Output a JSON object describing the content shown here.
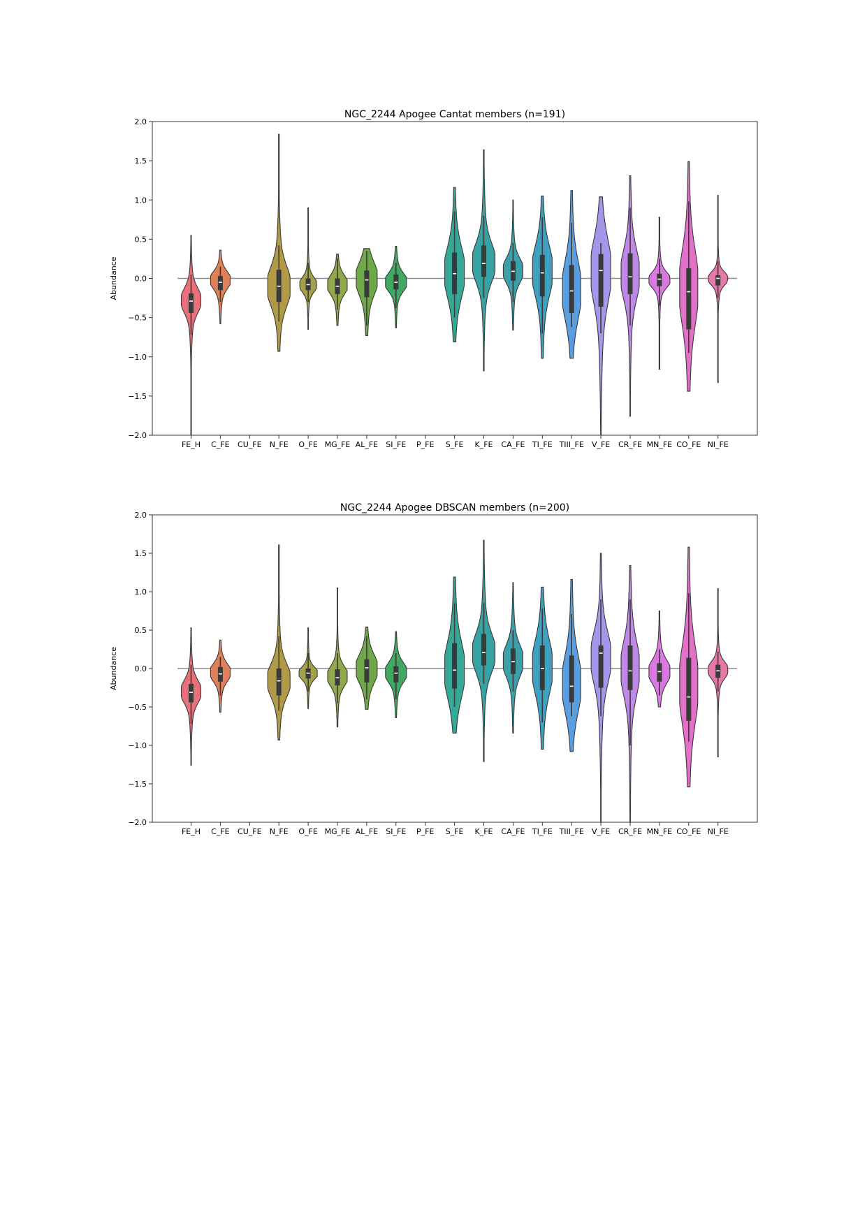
{
  "chart_data": [
    {
      "type": "violin",
      "title": "NGC_2244 Apogee Cantat members (n=191)",
      "xlabel": "",
      "ylabel": "Abundance",
      "ylim": [
        -2.0,
        2.0
      ],
      "yticks": [
        "2.0",
        "1.5",
        "1.0",
        "0.5",
        "0.0",
        "−0.5",
        "−1.0",
        "−1.5",
        "−2.0"
      ],
      "ytick_values": [
        2.0,
        1.5,
        1.0,
        0.5,
        0.0,
        -0.5,
        -1.0,
        -1.5,
        -2.0
      ],
      "reference_line": 0.0,
      "grid": false,
      "categories": [
        "FE_H",
        "C_FE",
        "CU_FE",
        "N_FE",
        "O_FE",
        "MG_FE",
        "AL_FE",
        "SI_FE",
        "P_FE",
        "S_FE",
        "K_FE",
        "CA_FE",
        "TI_FE",
        "TIII_FE",
        "V_FE",
        "CR_FE",
        "MN_FE",
        "CO_FE",
        "NI_FE"
      ],
      "violins": [
        {
          "name": "FE_H",
          "color": "#e8707a",
          "median": -0.29,
          "q1": -0.44,
          "q3": -0.19,
          "wmin": -0.72,
          "wmax": 0.05,
          "min": -2.0,
          "max": 0.55,
          "mode": -0.28,
          "width": 0.7
        },
        {
          "name": "C_FE",
          "color": "#e0805a",
          "median": -0.05,
          "q1": -0.15,
          "q3": 0.03,
          "wmin": -0.3,
          "wmax": 0.15,
          "min": -0.58,
          "max": 0.36,
          "mode": -0.02,
          "width": 0.7
        },
        {
          "name": "CU_FE",
          "color": "#c0a060",
          "median": null
        },
        {
          "name": "N_FE",
          "color": "#b09a48",
          "median": -0.1,
          "q1": -0.3,
          "q3": 0.11,
          "wmin": -0.55,
          "wmax": 0.42,
          "min": -0.93,
          "max": 1.84,
          "mode": -0.1,
          "width": 0.8
        },
        {
          "name": "O_FE",
          "color": "#a2a048",
          "median": -0.08,
          "q1": -0.15,
          "q3": 0.0,
          "wmin": -0.3,
          "wmax": 0.2,
          "min": -0.65,
          "max": 0.9,
          "mode": -0.08,
          "width": 0.6
        },
        {
          "name": "MG_FE",
          "color": "#90a848",
          "median": -0.1,
          "q1": -0.2,
          "q3": 0.0,
          "wmin": -0.4,
          "wmax": 0.25,
          "min": -0.6,
          "max": 0.31,
          "mode": -0.08,
          "width": 0.7
        },
        {
          "name": "AL_FE",
          "color": "#6fa848",
          "median": -0.02,
          "q1": -0.24,
          "q3": 0.1,
          "wmin": -0.6,
          "wmax": 0.35,
          "min": -0.73,
          "max": 0.38,
          "mode": 0.0,
          "width": 0.75
        },
        {
          "name": "SI_FE",
          "color": "#40a860",
          "median": -0.05,
          "q1": -0.14,
          "q3": 0.05,
          "wmin": -0.38,
          "wmax": 0.2,
          "min": -0.63,
          "max": 0.41,
          "mode": -0.05,
          "width": 0.75
        },
        {
          "name": "P_FE",
          "color": "#3ca890",
          "median": null
        },
        {
          "name": "S_FE",
          "color": "#36a898",
          "median": 0.06,
          "q1": -0.2,
          "q3": 0.33,
          "wmin": -0.5,
          "wmax": 0.85,
          "min": -0.81,
          "max": 1.16,
          "mode": 0.08,
          "width": 0.7
        },
        {
          "name": "K_FE",
          "color": "#38a2a2",
          "median": 0.19,
          "q1": 0.02,
          "q3": 0.42,
          "wmin": -0.25,
          "wmax": 0.8,
          "min": -1.18,
          "max": 1.64,
          "mode": 0.2,
          "width": 0.8
        },
        {
          "name": "CA_FE",
          "color": "#3aa0aa",
          "median": 0.09,
          "q1": -0.03,
          "q3": 0.22,
          "wmin": -0.3,
          "wmax": 0.45,
          "min": -0.66,
          "max": 1.0,
          "mode": 0.1,
          "width": 0.7
        },
        {
          "name": "TI_FE",
          "color": "#40a0c0",
          "median": 0.07,
          "q1": -0.23,
          "q3": 0.3,
          "wmin": -0.7,
          "wmax": 0.78,
          "min": -1.02,
          "max": 1.05,
          "mode": 0.1,
          "width": 0.7
        },
        {
          "name": "TIII_FE",
          "color": "#5a9ee0",
          "median": -0.16,
          "q1": -0.44,
          "q3": 0.17,
          "wmin": -0.62,
          "wmax": 0.71,
          "min": -1.02,
          "max": 1.12,
          "mode": -0.15,
          "width": 0.65
        },
        {
          "name": "V_FE",
          "color": "#a596ea",
          "median": 0.1,
          "q1": -0.36,
          "q3": 0.31,
          "wmin": -0.7,
          "wmax": 0.45,
          "min": -2.0,
          "max": 1.04,
          "mode": 0.1,
          "width": 0.7
        },
        {
          "name": "CR_FE",
          "color": "#c088e6",
          "median": 0.02,
          "q1": -0.2,
          "q3": 0.32,
          "wmin": -0.6,
          "wmax": 0.9,
          "min": -1.76,
          "max": 1.31,
          "mode": 0.05,
          "width": 0.65
        },
        {
          "name": "MN_FE",
          "color": "#d878e0",
          "median": -0.01,
          "q1": -0.1,
          "q3": 0.06,
          "wmin": -0.35,
          "wmax": 0.25,
          "min": -1.16,
          "max": 0.78,
          "mode": -0.02,
          "width": 0.75
        },
        {
          "name": "CO_FE",
          "color": "#e070c8",
          "median": -0.17,
          "q1": -0.65,
          "q3": 0.13,
          "wmin": -0.95,
          "wmax": 0.98,
          "min": -1.44,
          "max": 1.49,
          "mode": -0.1,
          "width": 0.65
        },
        {
          "name": "NI_FE",
          "color": "#e878a8",
          "median": 0.0,
          "q1": -0.09,
          "q3": 0.04,
          "wmin": -0.25,
          "wmax": 0.22,
          "min": -1.33,
          "max": 1.06,
          "mode": 0.0,
          "width": 0.7
        }
      ]
    },
    {
      "type": "violin",
      "title": "NGC_2244 Apogee DBSCAN members (n=200)",
      "xlabel": "",
      "ylabel": "Abundance",
      "ylim": [
        -2.0,
        2.0
      ],
      "yticks": [
        "2.0",
        "1.5",
        "1.0",
        "0.5",
        "0.0",
        "−0.5",
        "−1.0",
        "−1.5",
        "−2.0"
      ],
      "ytick_values": [
        2.0,
        1.5,
        1.0,
        0.5,
        0.0,
        -0.5,
        -1.0,
        -1.5,
        -2.0
      ],
      "reference_line": 0.0,
      "grid": false,
      "categories": [
        "FE_H",
        "C_FE",
        "CU_FE",
        "N_FE",
        "O_FE",
        "MG_FE",
        "AL_FE",
        "SI_FE",
        "P_FE",
        "S_FE",
        "K_FE",
        "CA_FE",
        "TI_FE",
        "TIII_FE",
        "V_FE",
        "CR_FE",
        "MN_FE",
        "CO_FE",
        "NI_FE"
      ],
      "violins": [
        {
          "name": "FE_H",
          "color": "#e8707a",
          "median": -0.31,
          "q1": -0.44,
          "q3": -0.2,
          "wmin": -0.72,
          "wmax": 0.05,
          "min": -1.26,
          "max": 0.53,
          "mode": -0.3,
          "width": 0.7
        },
        {
          "name": "C_FE",
          "color": "#e0805a",
          "median": -0.07,
          "q1": -0.17,
          "q3": 0.02,
          "wmin": -0.35,
          "wmax": 0.15,
          "min": -0.57,
          "max": 0.37,
          "mode": -0.05,
          "width": 0.7
        },
        {
          "name": "CU_FE",
          "color": "#c0a060",
          "median": null
        },
        {
          "name": "N_FE",
          "color": "#b09a48",
          "median": -0.16,
          "q1": -0.35,
          "q3": 0.0,
          "wmin": -0.55,
          "wmax": 0.42,
          "min": -0.93,
          "max": 1.61,
          "mode": -0.15,
          "width": 0.8
        },
        {
          "name": "O_FE",
          "color": "#a2a048",
          "median": -0.06,
          "q1": -0.13,
          "q3": 0.0,
          "wmin": -0.3,
          "wmax": 0.2,
          "min": -0.52,
          "max": 0.53,
          "mode": -0.06,
          "width": 0.65
        },
        {
          "name": "MG_FE",
          "color": "#90a848",
          "median": -0.12,
          "q1": -0.22,
          "q3": -0.01,
          "wmin": -0.45,
          "wmax": 0.2,
          "min": -0.76,
          "max": 1.05,
          "mode": -0.1,
          "width": 0.7
        },
        {
          "name": "AL_FE",
          "color": "#6fa848",
          "median": 0.01,
          "q1": -0.18,
          "q3": 0.12,
          "wmin": -0.4,
          "wmax": 0.42,
          "min": -0.53,
          "max": 0.54,
          "mode": 0.0,
          "width": 0.75
        },
        {
          "name": "SI_FE",
          "color": "#40a860",
          "median": -0.06,
          "q1": -0.18,
          "q3": 0.03,
          "wmin": -0.4,
          "wmax": 0.2,
          "min": -0.64,
          "max": 0.48,
          "mode": -0.05,
          "width": 0.75
        },
        {
          "name": "P_FE",
          "color": "#3ca890",
          "median": null
        },
        {
          "name": "S_FE",
          "color": "#36a898",
          "median": -0.02,
          "q1": -0.26,
          "q3": 0.33,
          "wmin": -0.5,
          "wmax": 0.85,
          "min": -0.84,
          "max": 1.19,
          "mode": -0.02,
          "width": 0.7
        },
        {
          "name": "K_FE",
          "color": "#38a2a2",
          "median": 0.21,
          "q1": 0.04,
          "q3": 0.45,
          "wmin": -0.2,
          "wmax": 0.85,
          "min": -1.21,
          "max": 1.67,
          "mode": 0.2,
          "width": 0.8
        },
        {
          "name": "CA_FE",
          "color": "#3aa0aa",
          "median": 0.09,
          "q1": -0.07,
          "q3": 0.26,
          "wmin": -0.3,
          "wmax": 0.5,
          "min": -0.84,
          "max": 1.12,
          "mode": 0.1,
          "width": 0.7
        },
        {
          "name": "TI_FE",
          "color": "#40a0c0",
          "median": 0.0,
          "q1": -0.28,
          "q3": 0.3,
          "wmin": -0.7,
          "wmax": 0.78,
          "min": -1.05,
          "max": 1.06,
          "mode": 0.02,
          "width": 0.7
        },
        {
          "name": "TIII_FE",
          "color": "#5a9ee0",
          "median": -0.23,
          "q1": -0.44,
          "q3": 0.17,
          "wmin": -0.62,
          "wmax": 0.71,
          "min": -1.08,
          "max": 1.16,
          "mode": -0.2,
          "width": 0.65
        },
        {
          "name": "V_FE",
          "color": "#a596ea",
          "median": 0.2,
          "q1": -0.25,
          "q3": 0.3,
          "wmin": -0.62,
          "wmax": 0.9,
          "min": -2.0,
          "max": 1.5,
          "mode": 0.15,
          "width": 0.7
        },
        {
          "name": "CR_FE",
          "color": "#c088e6",
          "median": -0.03,
          "q1": -0.28,
          "q3": 0.3,
          "wmin": -1.0,
          "wmax": 0.9,
          "min": -2.0,
          "max": 1.34,
          "mode": 0.0,
          "width": 0.65
        },
        {
          "name": "MN_FE",
          "color": "#d878e0",
          "median": -0.04,
          "q1": -0.17,
          "q3": 0.07,
          "wmin": -0.35,
          "wmax": 0.25,
          "min": -0.5,
          "max": 0.75,
          "mode": -0.04,
          "width": 0.75
        },
        {
          "name": "CO_FE",
          "color": "#e070c8",
          "median": -0.37,
          "q1": -0.68,
          "q3": 0.14,
          "wmin": -0.95,
          "wmax": 0.98,
          "min": -1.54,
          "max": 1.58,
          "mode": -0.2,
          "width": 0.65
        },
        {
          "name": "NI_FE",
          "color": "#e878a8",
          "median": -0.03,
          "q1": -0.12,
          "q3": 0.05,
          "wmin": -0.3,
          "wmax": 0.22,
          "min": -1.15,
          "max": 1.04,
          "mode": -0.02,
          "width": 0.7
        }
      ]
    }
  ]
}
